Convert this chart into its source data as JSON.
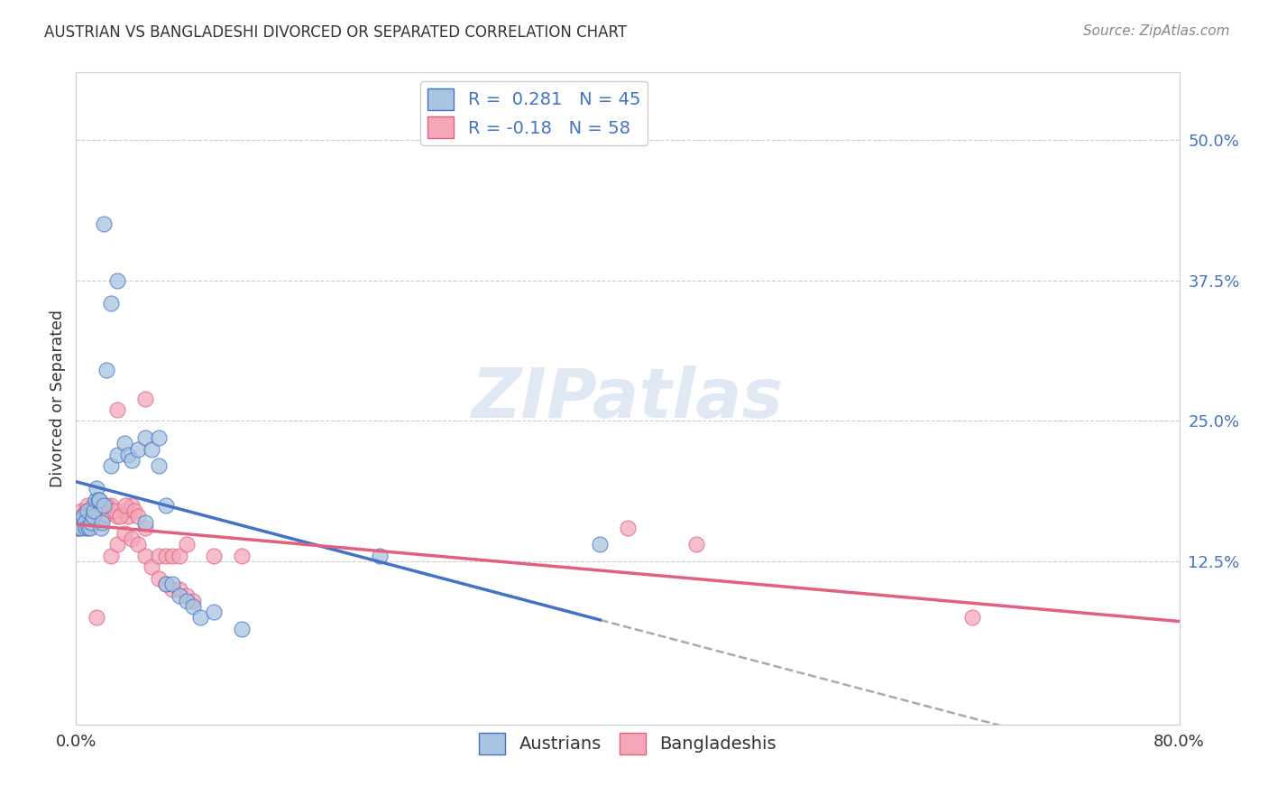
{
  "title": "AUSTRIAN VS BANGLADESHI DIVORCED OR SEPARATED CORRELATION CHART",
  "source": "Source: ZipAtlas.com",
  "ylabel": "Divorced or Separated",
  "ytick_vals": [
    0.5,
    0.375,
    0.25,
    0.125
  ],
  "xlim": [
    0.0,
    0.8
  ],
  "ylim": [
    -0.02,
    0.56
  ],
  "r_austrians": 0.281,
  "n_austrians": 45,
  "r_bangladeshis": -0.18,
  "n_bangladeshis": 58,
  "austrian_color": "#a8c4e0",
  "bangladeshi_color": "#f4a7b9",
  "austrian_line_color": "#4472c4",
  "bangladeshi_line_color": "#e06080",
  "trend_line_color": "#aaaaaa",
  "background_color": "#ffffff",
  "watermark": "ZIPatlas",
  "austrian_points": [
    [
      0.002,
      0.155
    ],
    [
      0.003,
      0.16
    ],
    [
      0.004,
      0.155
    ],
    [
      0.005,
      0.165
    ],
    [
      0.006,
      0.16
    ],
    [
      0.007,
      0.155
    ],
    [
      0.008,
      0.17
    ],
    [
      0.009,
      0.155
    ],
    [
      0.01,
      0.155
    ],
    [
      0.011,
      0.16
    ],
    [
      0.012,
      0.165
    ],
    [
      0.013,
      0.17
    ],
    [
      0.014,
      0.18
    ],
    [
      0.015,
      0.19
    ],
    [
      0.016,
      0.18
    ],
    [
      0.017,
      0.18
    ],
    [
      0.018,
      0.155
    ],
    [
      0.019,
      0.16
    ],
    [
      0.02,
      0.175
    ],
    [
      0.025,
      0.21
    ],
    [
      0.03,
      0.22
    ],
    [
      0.035,
      0.23
    ],
    [
      0.038,
      0.22
    ],
    [
      0.04,
      0.215
    ],
    [
      0.045,
      0.225
    ],
    [
      0.05,
      0.235
    ],
    [
      0.055,
      0.225
    ],
    [
      0.06,
      0.235
    ],
    [
      0.065,
      0.105
    ],
    [
      0.07,
      0.105
    ],
    [
      0.075,
      0.095
    ],
    [
      0.08,
      0.09
    ],
    [
      0.085,
      0.085
    ],
    [
      0.09,
      0.075
    ],
    [
      0.1,
      0.08
    ],
    [
      0.12,
      0.065
    ],
    [
      0.05,
      0.16
    ],
    [
      0.06,
      0.21
    ],
    [
      0.065,
      0.175
    ],
    [
      0.025,
      0.355
    ],
    [
      0.022,
      0.295
    ],
    [
      0.02,
      0.425
    ],
    [
      0.03,
      0.375
    ],
    [
      0.22,
      0.13
    ],
    [
      0.38,
      0.14
    ]
  ],
  "bangladeshi_points": [
    [
      0.001,
      0.155
    ],
    [
      0.002,
      0.155
    ],
    [
      0.003,
      0.165
    ],
    [
      0.004,
      0.17
    ],
    [
      0.005,
      0.165
    ],
    [
      0.006,
      0.16
    ],
    [
      0.007,
      0.17
    ],
    [
      0.008,
      0.175
    ],
    [
      0.009,
      0.165
    ],
    [
      0.01,
      0.165
    ],
    [
      0.011,
      0.17
    ],
    [
      0.012,
      0.175
    ],
    [
      0.013,
      0.16
    ],
    [
      0.014,
      0.165
    ],
    [
      0.015,
      0.165
    ],
    [
      0.016,
      0.17
    ],
    [
      0.017,
      0.165
    ],
    [
      0.018,
      0.165
    ],
    [
      0.019,
      0.17
    ],
    [
      0.02,
      0.165
    ],
    [
      0.025,
      0.175
    ],
    [
      0.03,
      0.165
    ],
    [
      0.035,
      0.17
    ],
    [
      0.038,
      0.165
    ],
    [
      0.04,
      0.175
    ],
    [
      0.022,
      0.175
    ],
    [
      0.028,
      0.17
    ],
    [
      0.032,
      0.165
    ],
    [
      0.036,
      0.175
    ],
    [
      0.042,
      0.17
    ],
    [
      0.045,
      0.165
    ],
    [
      0.05,
      0.155
    ],
    [
      0.025,
      0.13
    ],
    [
      0.03,
      0.14
    ],
    [
      0.035,
      0.15
    ],
    [
      0.04,
      0.145
    ],
    [
      0.045,
      0.14
    ],
    [
      0.05,
      0.13
    ],
    [
      0.055,
      0.12
    ],
    [
      0.06,
      0.11
    ],
    [
      0.065,
      0.105
    ],
    [
      0.07,
      0.1
    ],
    [
      0.075,
      0.1
    ],
    [
      0.08,
      0.095
    ],
    [
      0.085,
      0.09
    ],
    [
      0.1,
      0.13
    ],
    [
      0.12,
      0.13
    ],
    [
      0.4,
      0.155
    ],
    [
      0.05,
      0.27
    ],
    [
      0.06,
      0.13
    ],
    [
      0.065,
      0.13
    ],
    [
      0.07,
      0.13
    ],
    [
      0.075,
      0.13
    ],
    [
      0.08,
      0.14
    ],
    [
      0.45,
      0.14
    ],
    [
      0.65,
      0.075
    ],
    [
      0.03,
      0.26
    ],
    [
      0.015,
      0.075
    ]
  ]
}
